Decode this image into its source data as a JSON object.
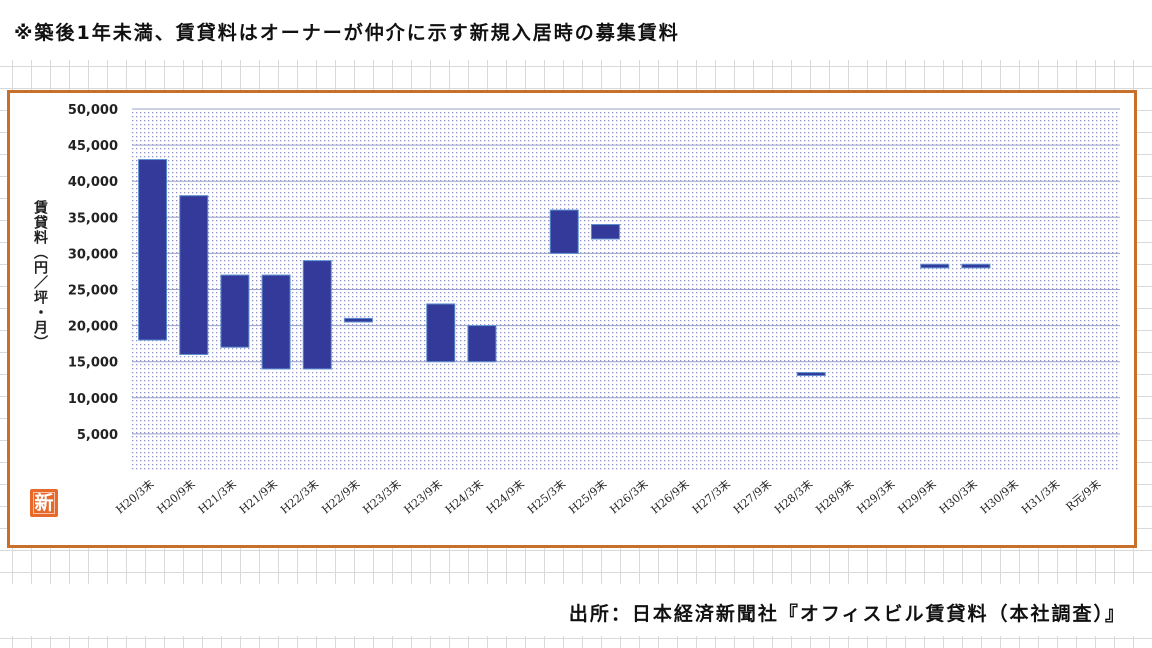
{
  "note": "※築後1年未満、賃貸料はオーナーが仲介に示す新規入居時の募集賃料",
  "source": "出所：日本経済新聞社『オフィスビル賃貸料（本社調査）』",
  "badge": "新",
  "colors": {
    "bar": "#343a9a",
    "frame": "#c8702a",
    "dots": "#8f95cc",
    "badge": "#e86a2b"
  },
  "chart_data": {
    "type": "bar",
    "subtype": "floating-range",
    "ylabel": "賃貸料（円／坪・月）",
    "ylim": [
      0,
      50000
    ],
    "yticks": [
      5000,
      10000,
      15000,
      20000,
      25000,
      30000,
      35000,
      40000,
      45000,
      50000
    ],
    "ytick_labels": [
      "5,000",
      "10,000",
      "15,000",
      "20,000",
      "25,000",
      "30,000",
      "35,000",
      "40,000",
      "45,000",
      "50,000"
    ],
    "grid": true,
    "categories": [
      "H20/3末",
      "H20/9末",
      "H21/3末",
      "H21/9末",
      "H22/3末",
      "H22/9末",
      "H23/3末",
      "H23/9末",
      "H24/3末",
      "H24/9末",
      "H25/3末",
      "H25/9末",
      "H26/3末",
      "H26/9末",
      "H27/3末",
      "H27/9末",
      "H28/3末",
      "H28/9末",
      "H29/3末",
      "H29/9末",
      "H30/3末",
      "H30/9末",
      "H31/3末",
      "R元/9末"
    ],
    "low": [
      18000,
      16000,
      17000,
      14000,
      14000,
      20500,
      null,
      15000,
      15000,
      null,
      30000,
      32000,
      null,
      null,
      null,
      null,
      13200,
      null,
      null,
      28000,
      28000,
      null,
      null,
      null
    ],
    "high": [
      43000,
      38000,
      27000,
      27000,
      29000,
      21000,
      null,
      23000,
      20000,
      null,
      36000,
      34000,
      null,
      null,
      null,
      null,
      13500,
      null,
      null,
      28500,
      28500,
      null,
      null,
      null
    ]
  }
}
